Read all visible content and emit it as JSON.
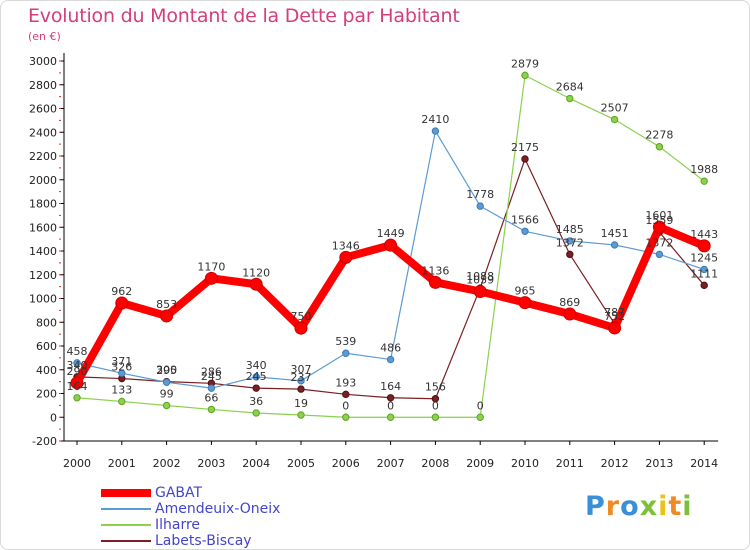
{
  "title": "Evolution du Montant de la Dette par Habitant",
  "subtitle": "(en €)",
  "logo": {
    "text": "Proxiti",
    "letter_colors": [
      "#3a8fd8",
      "#f08a24",
      "#3a8fd8",
      "#7bbf3a",
      "#e9c21b",
      "#f08a24",
      "#7bbf3a"
    ]
  },
  "chart_data": {
    "type": "line",
    "x": [
      2000,
      2001,
      2002,
      2003,
      2004,
      2005,
      2006,
      2007,
      2008,
      2009,
      2010,
      2011,
      2012,
      2013,
      2014
    ],
    "ylim": [
      -200,
      3000
    ],
    "yticks": [
      -200,
      0,
      200,
      400,
      600,
      800,
      1000,
      1200,
      1400,
      1600,
      1800,
      2000,
      2200,
      2400,
      2600,
      2800,
      3000
    ],
    "grid": false,
    "legend_position": "bottom-left",
    "series": [
      {
        "name": "GABAT",
        "color": "#ff0000",
        "values": [
          290,
          962,
          853,
          1170,
          1120,
          750,
          1346,
          1449,
          1136,
          1059,
          965,
          869,
          752,
          1601,
          1443
        ]
      },
      {
        "name": "Amendeuix-Oneix",
        "color": "#5b9bd5",
        "values": [
          458,
          371,
          295,
          245,
          340,
          307,
          539,
          486,
          2410,
          1778,
          1566,
          1485,
          1451,
          1372,
          1245
        ]
      },
      {
        "name": "Ilharre",
        "color": "#8bd14d",
        "values": [
          164,
          133,
          99,
          66,
          36,
          19,
          0,
          0,
          0,
          0,
          2879,
          2684,
          2507,
          2278,
          1988
        ]
      },
      {
        "name": "Labets-Biscay",
        "color": "#7a1f22",
        "values": [
          340,
          326,
          300,
          286,
          245,
          237,
          193,
          164,
          156,
          1088,
          2175,
          1372,
          787,
          1559,
          1111
        ]
      }
    ]
  }
}
